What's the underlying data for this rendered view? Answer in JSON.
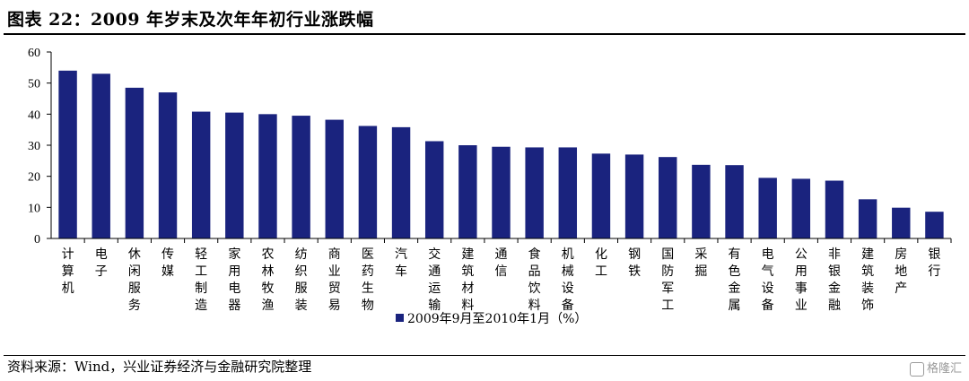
{
  "title": "图表 22：2009 年岁末及次年年初行业涨跌幅",
  "source": "资料来源：Wind，兴业证券经济与金融研究院整理",
  "watermark": "格隆汇",
  "colors": {
    "bar": "#1a237e",
    "axis": "#000000"
  },
  "chart_data": {
    "type": "bar",
    "ylim": [
      0,
      60
    ],
    "yticks": [
      0,
      10,
      20,
      30,
      40,
      50,
      60
    ],
    "grid": false,
    "legend_position": "bottom",
    "categories": [
      "计算机",
      "电子",
      "休闲服务",
      "传媒",
      "轻工制造",
      "家用电器",
      "农林牧渔",
      "纺织服装",
      "商业贸易",
      "医药生物",
      "汽车",
      "交通运输",
      "建筑材料",
      "通信",
      "食品饮料",
      "机械设备",
      "化工",
      "钢铁",
      "国防军工",
      "采掘",
      "有色金属",
      "电气设备",
      "公用事业",
      "非银金融",
      "建筑装饰",
      "房地产",
      "银行"
    ],
    "series": [
      {
        "name": "2009年9月至2010年1月（%）",
        "values": [
          54.0,
          53.0,
          48.5,
          47.0,
          40.8,
          40.5,
          40.0,
          39.5,
          38.2,
          36.2,
          35.8,
          31.3,
          30.0,
          29.5,
          29.3,
          29.3,
          27.3,
          27.0,
          26.2,
          23.7,
          23.6,
          19.5,
          19.2,
          18.6,
          12.6,
          9.9,
          8.6
        ]
      }
    ]
  }
}
